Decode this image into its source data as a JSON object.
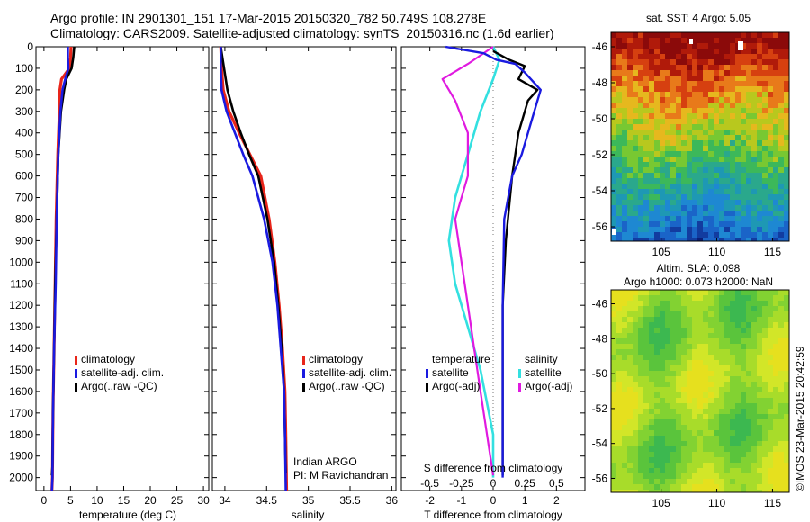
{
  "header": {
    "line1": "Argo profile: IN 2901301_151 17-Mar-2015 20150320_782 50.749S 108.278E",
    "line2": "Climatology: CARS2009. Satellite-adjusted climatology: synTS_20150316.nc (1.6d earlier)"
  },
  "colors": {
    "climatology": "#e8251a",
    "satellite": "#1a1ae0",
    "argo": "#000000",
    "sal_satellite": "#33e0e0",
    "sal_argo": "#e01ae0",
    "dotted": "#777777"
  },
  "depth_ticks": [
    "0",
    "100",
    "200",
    "300",
    "400",
    "500",
    "600",
    "700",
    "800",
    "900",
    "1000",
    "1100",
    "1200",
    "1300",
    "1400",
    "1500",
    "1600",
    "1700",
    "1800",
    "1900",
    "2000"
  ],
  "chart_data": [
    {
      "type": "line",
      "name": "temperature-panel",
      "xlabel": "temperature (deg C)",
      "xlim": [
        -1.5,
        31
      ],
      "ylim": [
        0,
        2060
      ],
      "x_ticks": [
        "0",
        "5",
        "10",
        "15",
        "20",
        "25",
        "30"
      ],
      "legend": [
        "climatology",
        "satellite-adj. clim.",
        "Argo(..raw -QC)"
      ],
      "series": [
        {
          "name": "climatology",
          "x": [
            5.1,
            5.0,
            4.8,
            3.3,
            3.0,
            2.9,
            2.6,
            2.3,
            2.1,
            1.9,
            1.7,
            1.6,
            1.5
          ],
          "y": [
            0,
            50,
            100,
            150,
            200,
            300,
            500,
            800,
            1100,
            1400,
            1700,
            2000,
            2060
          ]
        },
        {
          "name": "satellite-adj. clim.",
          "x": [
            4.5,
            4.5,
            4.6,
            4.0,
            3.5,
            3.1,
            2.7,
            2.4,
            2.2,
            1.9,
            1.7,
            1.6,
            1.5
          ],
          "y": [
            0,
            50,
            100,
            150,
            200,
            300,
            500,
            800,
            1100,
            1400,
            1700,
            2000,
            2060
          ]
        },
        {
          "name": "Argo(..raw -QC)",
          "x": [
            5.7,
            5.5,
            5.2,
            4.2,
            3.8,
            3.2,
            2.7,
            2.4,
            2.1,
            1.9,
            1.7,
            1.6,
            1.5
          ],
          "y": [
            0,
            50,
            100,
            150,
            200,
            300,
            500,
            800,
            1100,
            1400,
            1700,
            1950,
            1990
          ]
        }
      ]
    },
    {
      "type": "line",
      "name": "salinity-panel",
      "xlabel": "salinity",
      "xlim": [
        33.85,
        36.05
      ],
      "ylim": [
        0,
        2060
      ],
      "x_ticks": [
        "34",
        "34.5",
        "35",
        "35.5",
        "36"
      ],
      "legend": [
        "climatology",
        "satellite-adj. clim.",
        "Argo(..raw -QC)"
      ],
      "annotation": [
        "Indian ARGO",
        "PI: M Ravichandran"
      ],
      "series": [
        {
          "name": "climatology",
          "x": [
            33.95,
            33.96,
            33.98,
            34.05,
            34.17,
            34.3,
            34.43,
            34.53,
            34.6,
            34.65,
            34.69,
            34.72,
            34.73,
            34.74
          ],
          "y": [
            0,
            100,
            200,
            300,
            400,
            500,
            600,
            800,
            1000,
            1200,
            1400,
            1600,
            1800,
            2060
          ]
        },
        {
          "name": "satellite-adj. clim.",
          "x": [
            33.95,
            33.95,
            33.96,
            34.02,
            34.12,
            34.22,
            34.33,
            34.47,
            34.57,
            34.63,
            34.67,
            34.71,
            34.72,
            34.73
          ],
          "y": [
            0,
            100,
            200,
            300,
            400,
            500,
            600,
            800,
            1000,
            1200,
            1400,
            1600,
            1800,
            2060
          ]
        },
        {
          "name": "Argo(..raw -QC)",
          "x": [
            33.95,
            33.99,
            34.03,
            34.1,
            34.19,
            34.29,
            34.4,
            34.51,
            34.59,
            34.64,
            34.68,
            34.71,
            34.72,
            34.73
          ],
          "y": [
            0,
            100,
            200,
            300,
            400,
            500,
            600,
            800,
            1000,
            1200,
            1400,
            1600,
            1800,
            1980
          ]
        }
      ]
    },
    {
      "type": "line",
      "name": "difference-panel",
      "xlabel": "T difference from climatology",
      "xlabel_top": "S difference from climatology",
      "xlim": [
        -2.9,
        2.9
      ],
      "ylim": [
        0,
        2060
      ],
      "x_ticks": [
        "-2",
        "-1",
        "0",
        "1",
        "2"
      ],
      "x_ticks_top": [
        "-0.5",
        "-0.25",
        "0",
        "0.25",
        "0.5"
      ],
      "legend": {
        "temperature": [
          "satellite",
          "Argo(-adj)"
        ],
        "salinity": [
          "satellite",
          "Argo(-adj)"
        ]
      },
      "series": [
        {
          "name": "temperature satellite",
          "x": [
            -1.5,
            -0.3,
            0.1,
            0.7,
            1.0,
            1.5,
            1.3,
            1.1,
            0.9,
            0.6,
            0.35,
            0.3,
            0.3,
            0.3
          ],
          "y": [
            0,
            30,
            60,
            80,
            120,
            200,
            300,
            400,
            500,
            600,
            800,
            1200,
            1600,
            2000
          ]
        },
        {
          "name": "temperature Argo(-adj)",
          "x": [
            0.0,
            0.5,
            1.0,
            0.8,
            1.4,
            1.1,
            0.8,
            0.6,
            0.4,
            0.3,
            0.3,
            0.3
          ],
          "y": [
            20,
            60,
            90,
            150,
            200,
            250,
            400,
            600,
            900,
            1200,
            1600,
            1990
          ]
        },
        {
          "name": "salinity satellite",
          "x": [
            0.0,
            0.05,
            0.0,
            -0.1,
            -0.2,
            -0.3,
            -0.35,
            -0.3,
            -0.2,
            -0.1,
            0.0,
            0.0
          ],
          "y": [
            0,
            60,
            150,
            300,
            500,
            700,
            900,
            1100,
            1300,
            1500,
            1800,
            2000
          ]
        },
        {
          "name": "salinity Argo(-adj)",
          "x": [
            0.0,
            -0.2,
            -0.4,
            -0.3,
            -0.2,
            -0.2,
            -0.3,
            -0.2,
            -0.1,
            0.0
          ],
          "y": [
            0,
            80,
            150,
            250,
            400,
            600,
            800,
            1200,
            1600,
            1990
          ]
        }
      ]
    },
    {
      "type": "heatmap",
      "name": "sst-map",
      "title": "sat. SST: 4  Argo: 5.05",
      "x_ticks": [
        "105",
        "110",
        "115"
      ],
      "y_ticks": [
        "-46",
        "-48",
        "-50",
        "-52",
        "-54",
        "-56"
      ]
    },
    {
      "type": "heatmap",
      "name": "sla-map",
      "title": [
        "Altim. SLA: 0.098",
        "Argo h1000: 0.073 h2000: NaN"
      ],
      "x_ticks": [
        "105",
        "110",
        "115"
      ],
      "y_ticks": [
        "-46",
        "-48",
        "-50",
        "-52",
        "-54",
        "-56"
      ],
      "side_label": "©IMOS 23-Mar-2015 20:42:59"
    }
  ]
}
